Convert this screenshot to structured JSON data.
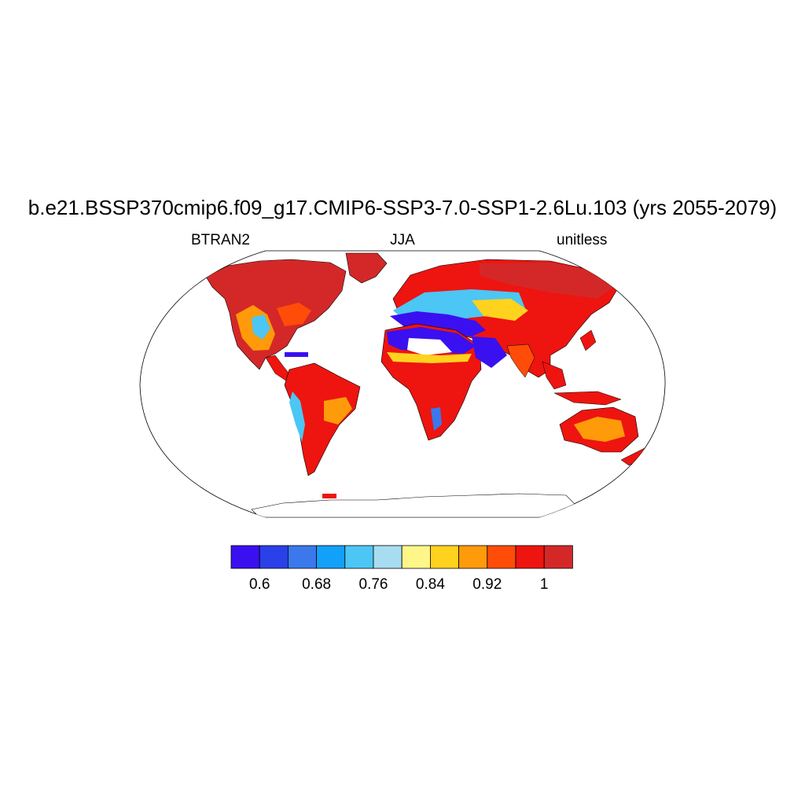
{
  "title": "b.e21.BSSP370cmip6.f09_g17.CMIP6-SSP3-7.0-SSP1-2.6Lu.103 (yrs 2055-2079)",
  "subtitle_left": "BTRAN2",
  "subtitle_center": "JJA",
  "subtitle_right": "unitless",
  "map": {
    "projection": "Robinson",
    "variable": "BTRAN2",
    "season": "JJA",
    "ocean_fill": "#ffffff",
    "outline_color": "#000000"
  },
  "colorbar": {
    "colors": [
      "#3a10f0",
      "#2a40e8",
      "#3a78ec",
      "#12a0f8",
      "#4cc6f4",
      "#a8dcf0",
      "#fff68a",
      "#ffd21e",
      "#ff9a0a",
      "#ff4c08",
      "#ee1410",
      "#d42828"
    ],
    "tick_labels": [
      "0.6",
      "0.68",
      "0.76",
      "0.84",
      "0.92",
      "1"
    ]
  },
  "colors": {
    "high": "#d42828",
    "mid": "#ff9a0a",
    "low": "#3a10f0"
  }
}
